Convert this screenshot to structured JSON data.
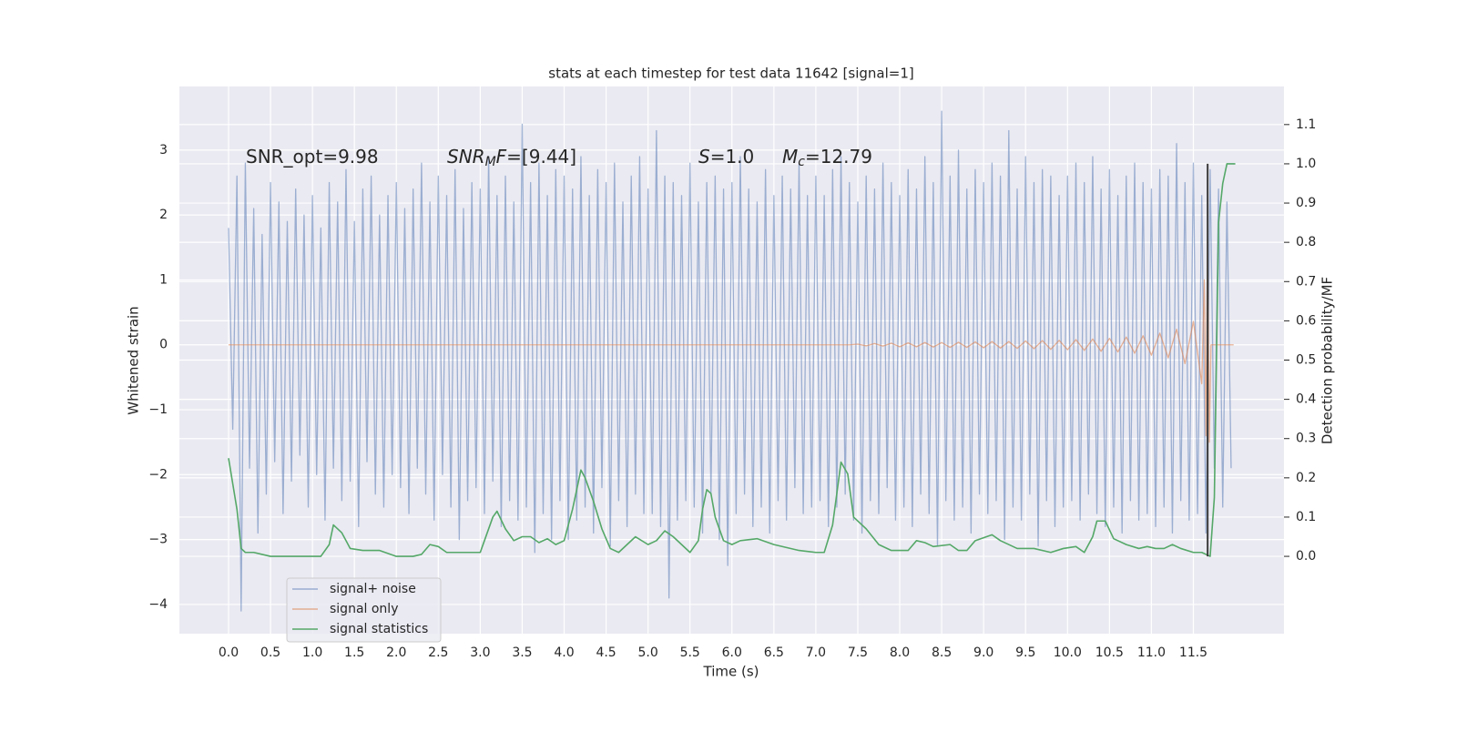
{
  "chart_data": {
    "type": "line",
    "title": "stats at each timestep for test data 11642 [signal=1]",
    "xlabel": "Time (s)",
    "ylabel": "Whitened strain",
    "y2label": "Detection probability/MF",
    "annotations": [
      [
        "SNR_opt=9.98"
      ],
      [
        "SNR",
        "M",
        "F",
        "=[9.44]"
      ],
      [
        "S",
        "=1.0"
      ],
      [
        "M",
        "c",
        "=12.79"
      ]
    ],
    "xlim": [
      -0.586,
      12.58
    ],
    "ylim": [
      -4.45,
      3.98
    ],
    "y2lim": [
      -0.197,
      1.197
    ],
    "xticks": [
      {
        "value": 0,
        "label": "0.0"
      },
      0.5,
      {
        "value": 1,
        "label": "1.0"
      },
      1.5,
      {
        "value": 2,
        "label": "2.0"
      },
      2.5,
      {
        "value": 3,
        "label": "3.0"
      },
      3.5,
      {
        "value": 4,
        "label": "4.0"
      },
      4.5,
      {
        "value": 5,
        "label": "5.0"
      },
      5.5,
      {
        "value": 6,
        "label": "6.0"
      },
      6.5,
      {
        "value": 7,
        "label": "7.0"
      },
      7.5,
      {
        "value": 8,
        "label": "8.0"
      },
      8.5,
      {
        "value": 9,
        "label": "9.0"
      },
      9.5,
      {
        "value": 10,
        "label": "10.0"
      },
      10.5,
      {
        "value": 11,
        "label": "11.0"
      },
      11.5
    ],
    "yticks": [
      {
        "value": -4,
        "label": "−4"
      },
      {
        "value": -3,
        "label": "−3"
      },
      {
        "value": -2,
        "label": "−2"
      },
      {
        "value": -1,
        "label": "−1"
      },
      0,
      1,
      2,
      3
    ],
    "y2ticks": [
      {
        "value": 0,
        "label": "0.0"
      },
      0.1,
      0.2,
      0.3,
      0.4,
      0.5,
      0.6,
      0.7,
      0.8,
      0.9,
      {
        "value": 1,
        "label": "1.0"
      },
      1.1
    ],
    "grid": true,
    "legend": "lower left",
    "series": [
      {
        "name": "signal+ noise",
        "color": "#4c72b0",
        "x": [
          0,
          0.05,
          0.1,
          0.15,
          0.2,
          0.25,
          0.3,
          0.35,
          0.4,
          0.45,
          0.5,
          0.55,
          0.6,
          0.65,
          0.7,
          0.75,
          0.8,
          0.85,
          0.9,
          0.95,
          1,
          1.05,
          1.1,
          1.15,
          1.2,
          1.25,
          1.3,
          1.35,
          1.4,
          1.45,
          1.5,
          1.55,
          1.6,
          1.65,
          1.7,
          1.75,
          1.8,
          1.85,
          1.9,
          1.95,
          2,
          2.05,
          2.1,
          2.15,
          2.2,
          2.25,
          2.3,
          2.35,
          2.4,
          2.45,
          2.5,
          2.55,
          2.6,
          2.65,
          2.7,
          2.75,
          2.8,
          2.85,
          2.9,
          2.95,
          3,
          3.05,
          3.1,
          3.15,
          3.2,
          3.25,
          3.3,
          3.35,
          3.4,
          3.45,
          3.5,
          3.55,
          3.6,
          3.65,
          3.7,
          3.75,
          3.8,
          3.85,
          3.9,
          3.95,
          4,
          4.05,
          4.1,
          4.15,
          4.2,
          4.25,
          4.3,
          4.35,
          4.4,
          4.45,
          4.5,
          4.55,
          4.6,
          4.65,
          4.7,
          4.75,
          4.8,
          4.85,
          4.9,
          4.95,
          5,
          5.05,
          5.1,
          5.15,
          5.2,
          5.25,
          5.3,
          5.35,
          5.4,
          5.45,
          5.5,
          5.55,
          5.6,
          5.65,
          5.7,
          5.75,
          5.8,
          5.85,
          5.9,
          5.95,
          6,
          6.05,
          6.1,
          6.15,
          6.2,
          6.25,
          6.3,
          6.35,
          6.4,
          6.45,
          6.5,
          6.55,
          6.6,
          6.65,
          6.7,
          6.75,
          6.8,
          6.85,
          6.9,
          6.95,
          7,
          7.05,
          7.1,
          7.15,
          7.2,
          7.25,
          7.3,
          7.35,
          7.4,
          7.45,
          7.5,
          7.55,
          7.6,
          7.65,
          7.7,
          7.75,
          7.8,
          7.85,
          7.9,
          7.95,
          8,
          8.05,
          8.1,
          8.15,
          8.2,
          8.25,
          8.3,
          8.35,
          8.4,
          8.45,
          8.5,
          8.55,
          8.6,
          8.65,
          8.7,
          8.75,
          8.8,
          8.85,
          8.9,
          8.95,
          9,
          9.05,
          9.1,
          9.15,
          9.2,
          9.25,
          9.3,
          9.35,
          9.4,
          9.45,
          9.5,
          9.55,
          9.6,
          9.65,
          9.7,
          9.75,
          9.8,
          9.85,
          9.9,
          9.95,
          10,
          10.05,
          10.1,
          10.15,
          10.2,
          10.25,
          10.3,
          10.35,
          10.4,
          10.45,
          10.5,
          10.55,
          10.6,
          10.65,
          10.7,
          10.75,
          10.8,
          10.85,
          10.9,
          10.95,
          11,
          11.05,
          11.1,
          11.15,
          11.2,
          11.25,
          11.3,
          11.35,
          11.4,
          11.45,
          11.5,
          11.55,
          11.6,
          11.65,
          11.7,
          11.75,
          11.8,
          11.85,
          11.9,
          11.95
        ],
        "values": [
          1.8,
          -1.3,
          2.6,
          -4.1,
          2.8,
          -1.9,
          2.1,
          -2.9,
          1.7,
          -2.3,
          2.5,
          -1.8,
          2.2,
          -2.6,
          1.9,
          -2.1,
          2.4,
          -1.7,
          2.0,
          -2.5,
          2.3,
          -2.0,
          1.8,
          -2.7,
          2.5,
          -1.9,
          2.2,
          -2.4,
          2.7,
          -2.1,
          1.9,
          -2.8,
          2.4,
          -1.8,
          2.6,
          -2.3,
          2.0,
          -2.5,
          2.3,
          -2.0,
          2.5,
          -2.2,
          2.1,
          -2.6,
          2.4,
          -1.9,
          2.8,
          -2.3,
          2.2,
          -2.7,
          2.6,
          -2.0,
          2.3,
          -2.5,
          2.7,
          -3.0,
          2.1,
          -2.4,
          2.5,
          -2.2,
          2.4,
          -2.6,
          2.9,
          -2.1,
          2.3,
          -2.8,
          2.6,
          -2.4,
          2.2,
          -2.7,
          3.4,
          -2.5,
          2.5,
          -3.2,
          2.8,
          -2.6,
          2.3,
          -3.0,
          2.7,
          -2.4,
          2.6,
          -3.0,
          2.4,
          -2.7,
          2.9,
          -2.5,
          2.3,
          -2.9,
          2.7,
          -2.2,
          2.5,
          -3.1,
          2.8,
          -2.4,
          2.2,
          -2.8,
          2.6,
          -2.3,
          2.9,
          -2.6,
          2.4,
          -2.6,
          3.3,
          -2.8,
          2.6,
          -3.9,
          2.5,
          -2.7,
          2.3,
          -2.4,
          2.8,
          -2.5,
          2.2,
          -2.9,
          2.5,
          -2.3,
          2.6,
          -3.0,
          2.4,
          -3.4,
          2.5,
          -2.6,
          2.9,
          -2.3,
          2.4,
          -2.8,
          2.2,
          -2.5,
          2.7,
          -2.9,
          2.3,
          -2.4,
          2.6,
          -2.7,
          2.4,
          -2.2,
          2.8,
          -2.6,
          2.3,
          -2.5,
          2.6,
          -2.4,
          2.3,
          -2.8,
          2.7,
          -2.5,
          2.9,
          -2.3,
          2.5,
          -2.7,
          2.2,
          -2.9,
          2.6,
          -2.4,
          2.4,
          -2.6,
          2.8,
          -2.2,
          2.5,
          -2.7,
          2.3,
          -2.5,
          2.7,
          -2.8,
          2.4,
          -2.3,
          2.9,
          -2.6,
          2.5,
          -3.1,
          3.6,
          -2.4,
          2.6,
          -2.7,
          3.0,
          -2.5,
          2.4,
          -2.9,
          2.7,
          -2.3,
          2.5,
          -2.6,
          2.8,
          -2.4,
          2.6,
          -3.0,
          3.3,
          -2.5,
          2.4,
          -2.7,
          2.9,
          -2.3,
          2.5,
          -3.1,
          2.7,
          -2.4,
          2.6,
          -2.8,
          2.3,
          -2.5,
          2.6,
          -2.4,
          2.8,
          -2.7,
          2.5,
          -2.3,
          2.9,
          -2.6,
          2.4,
          -2.8,
          2.7,
          -2.5,
          2.3,
          -2.9,
          2.6,
          -2.4,
          2.8,
          -2.7,
          2.5,
          -2.6,
          2.4,
          -2.8,
          2.7,
          -2.5,
          2.6,
          -2.9,
          3.1,
          -2.4,
          2.5,
          -2.7,
          2.8,
          -2.6,
          2.3,
          -2.9,
          2.7,
          -1.9,
          2.4,
          -2.5,
          2.2,
          -1.9
        ]
      },
      {
        "name": "signal only",
        "color": "#dd8452",
        "x": [
          0,
          7.4,
          7.5,
          7.6,
          7.7,
          7.8,
          7.9,
          8,
          8.1,
          8.2,
          8.3,
          8.4,
          8.5,
          8.6,
          8.7,
          8.8,
          8.9,
          9,
          9.1,
          9.2,
          9.3,
          9.4,
          9.5,
          9.6,
          9.7,
          9.8,
          9.9,
          10,
          10.1,
          10.2,
          10.3,
          10.4,
          10.5,
          10.6,
          10.7,
          10.8,
          10.9,
          11,
          11.1,
          11.2,
          11.3,
          11.4,
          11.5,
          11.6,
          11.63,
          11.65,
          11.67,
          11.69,
          11.71,
          11.98
        ],
        "values": [
          0,
          0,
          0.01,
          -0.015,
          0.02,
          -0.02,
          0.025,
          -0.03,
          0.03,
          -0.03,
          0.035,
          -0.035,
          0.035,
          -0.04,
          0.04,
          -0.04,
          0.045,
          -0.045,
          0.05,
          -0.05,
          0.05,
          -0.055,
          0.06,
          -0.06,
          0.065,
          -0.07,
          0.07,
          -0.075,
          0.08,
          -0.085,
          0.09,
          -0.1,
          0.1,
          -0.11,
          0.12,
          -0.13,
          0.14,
          -0.16,
          0.18,
          -0.2,
          0.24,
          -0.29,
          0.36,
          -0.6,
          1.0,
          -1.4,
          1.8,
          -1.5,
          0,
          0
        ]
      },
      {
        "name": "signal statistics",
        "color": "#55a868",
        "axis": "y2",
        "x": [
          0,
          0.1,
          0.15,
          0.2,
          0.3,
          0.4,
          0.5,
          0.6,
          0.8,
          1.0,
          1.1,
          1.2,
          1.25,
          1.35,
          1.45,
          1.6,
          1.8,
          2.0,
          2.2,
          2.3,
          2.4,
          2.5,
          2.6,
          2.8,
          3.0,
          3.05,
          3.15,
          3.2,
          3.3,
          3.4,
          3.5,
          3.6,
          3.7,
          3.8,
          3.9,
          4.0,
          4.1,
          4.2,
          4.25,
          4.35,
          4.45,
          4.55,
          4.65,
          4.75,
          4.85,
          5.0,
          5.1,
          5.2,
          5.3,
          5.4,
          5.5,
          5.6,
          5.65,
          5.7,
          5.75,
          5.8,
          5.9,
          6.0,
          6.1,
          6.3,
          6.5,
          6.8,
          7.0,
          7.1,
          7.2,
          7.3,
          7.38,
          7.45,
          7.6,
          7.75,
          7.9,
          8.1,
          8.2,
          8.3,
          8.4,
          8.6,
          8.7,
          8.8,
          8.9,
          9.1,
          9.2,
          9.4,
          9.6,
          9.8,
          9.95,
          10.1,
          10.2,
          10.3,
          10.35,
          10.45,
          10.55,
          10.7,
          10.85,
          10.95,
          11.05,
          11.15,
          11.25,
          11.35,
          11.5,
          11.6,
          11.7,
          11.75,
          11.8,
          11.85,
          11.9,
          12.0
        ],
        "values": [
          0.25,
          0.12,
          0.02,
          0.01,
          0.01,
          0.005,
          0.0,
          0.0,
          0.0,
          0.0,
          0.0,
          0.03,
          0.08,
          0.06,
          0.02,
          0.015,
          0.015,
          0.0,
          0.0,
          0.005,
          0.03,
          0.025,
          0.01,
          0.01,
          0.01,
          0.04,
          0.1,
          0.115,
          0.07,
          0.04,
          0.05,
          0.05,
          0.035,
          0.045,
          0.03,
          0.04,
          0.12,
          0.22,
          0.2,
          0.14,
          0.07,
          0.02,
          0.01,
          0.03,
          0.05,
          0.03,
          0.04,
          0.065,
          0.05,
          0.03,
          0.01,
          0.04,
          0.12,
          0.17,
          0.16,
          0.1,
          0.04,
          0.03,
          0.04,
          0.045,
          0.03,
          0.015,
          0.01,
          0.01,
          0.08,
          0.24,
          0.21,
          0.1,
          0.07,
          0.03,
          0.015,
          0.015,
          0.04,
          0.035,
          0.025,
          0.03,
          0.015,
          0.015,
          0.04,
          0.055,
          0.04,
          0.02,
          0.02,
          0.01,
          0.02,
          0.025,
          0.01,
          0.05,
          0.09,
          0.09,
          0.045,
          0.03,
          0.02,
          0.025,
          0.02,
          0.02,
          0.03,
          0.02,
          0.01,
          0.01,
          0.0,
          0.15,
          0.85,
          0.95,
          1.0,
          1.0
        ]
      }
    ],
    "vline": {
      "x": 11.67,
      "y2": [
        0,
        1.0
      ],
      "color": "#3a3a3a"
    }
  }
}
